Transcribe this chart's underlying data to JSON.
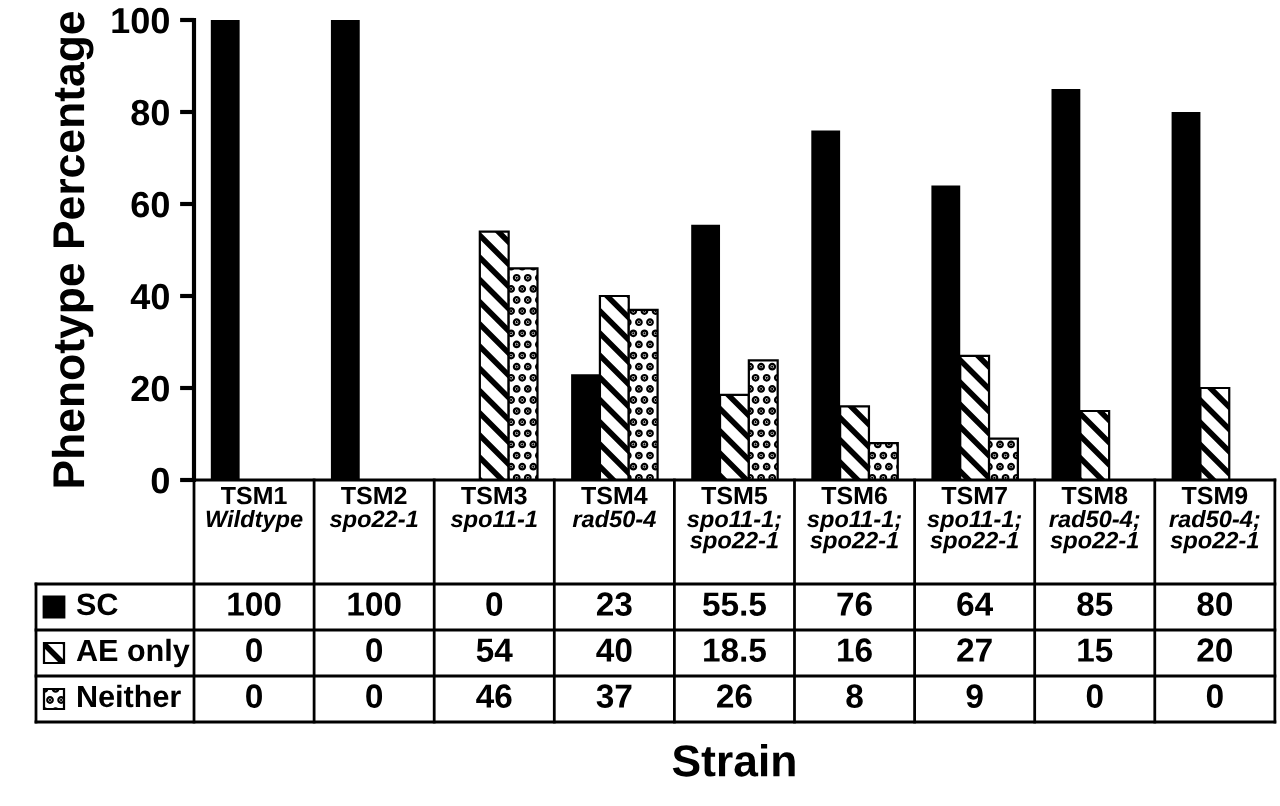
{
  "chart_data": {
    "type": "bar",
    "ylabel": "Phenotype Percentage",
    "xlabel": "Strain",
    "categories": [
      "TSM1\nWildtype",
      "TSM2\nspo22-1",
      "TSM3\nspo11-1",
      "TSM4\nrad50-4",
      "TSM5\nspo11-1;\nspo22-1",
      "TSM6\nspo11-1;\nspo22-1",
      "TSM7\nspo11-1;\nspo22-1",
      "TSM8\nrad50-4;\nspo22-1",
      "TSM9\nrad50-4;\nspo22-1"
    ],
    "series": [
      {
        "name": "SC",
        "color": "#000000",
        "values": [
          100,
          100,
          0,
          23,
          55.5,
          76,
          64,
          85,
          80
        ]
      },
      {
        "name": "AE only",
        "color": "#000000",
        "values": [
          0,
          0,
          54,
          40,
          18.5,
          16,
          27,
          15,
          20
        ]
      },
      {
        "name": "Neither",
        "color": "#000000",
        "values": [
          0,
          0,
          46,
          37,
          26,
          8,
          9,
          0,
          0
        ]
      }
    ],
    "legend": "bottom left",
    "ylim": [
      0,
      100
    ],
    "yticks": [
      0,
      20,
      40,
      60,
      80,
      100
    ],
    "data_labels": true
  }
}
